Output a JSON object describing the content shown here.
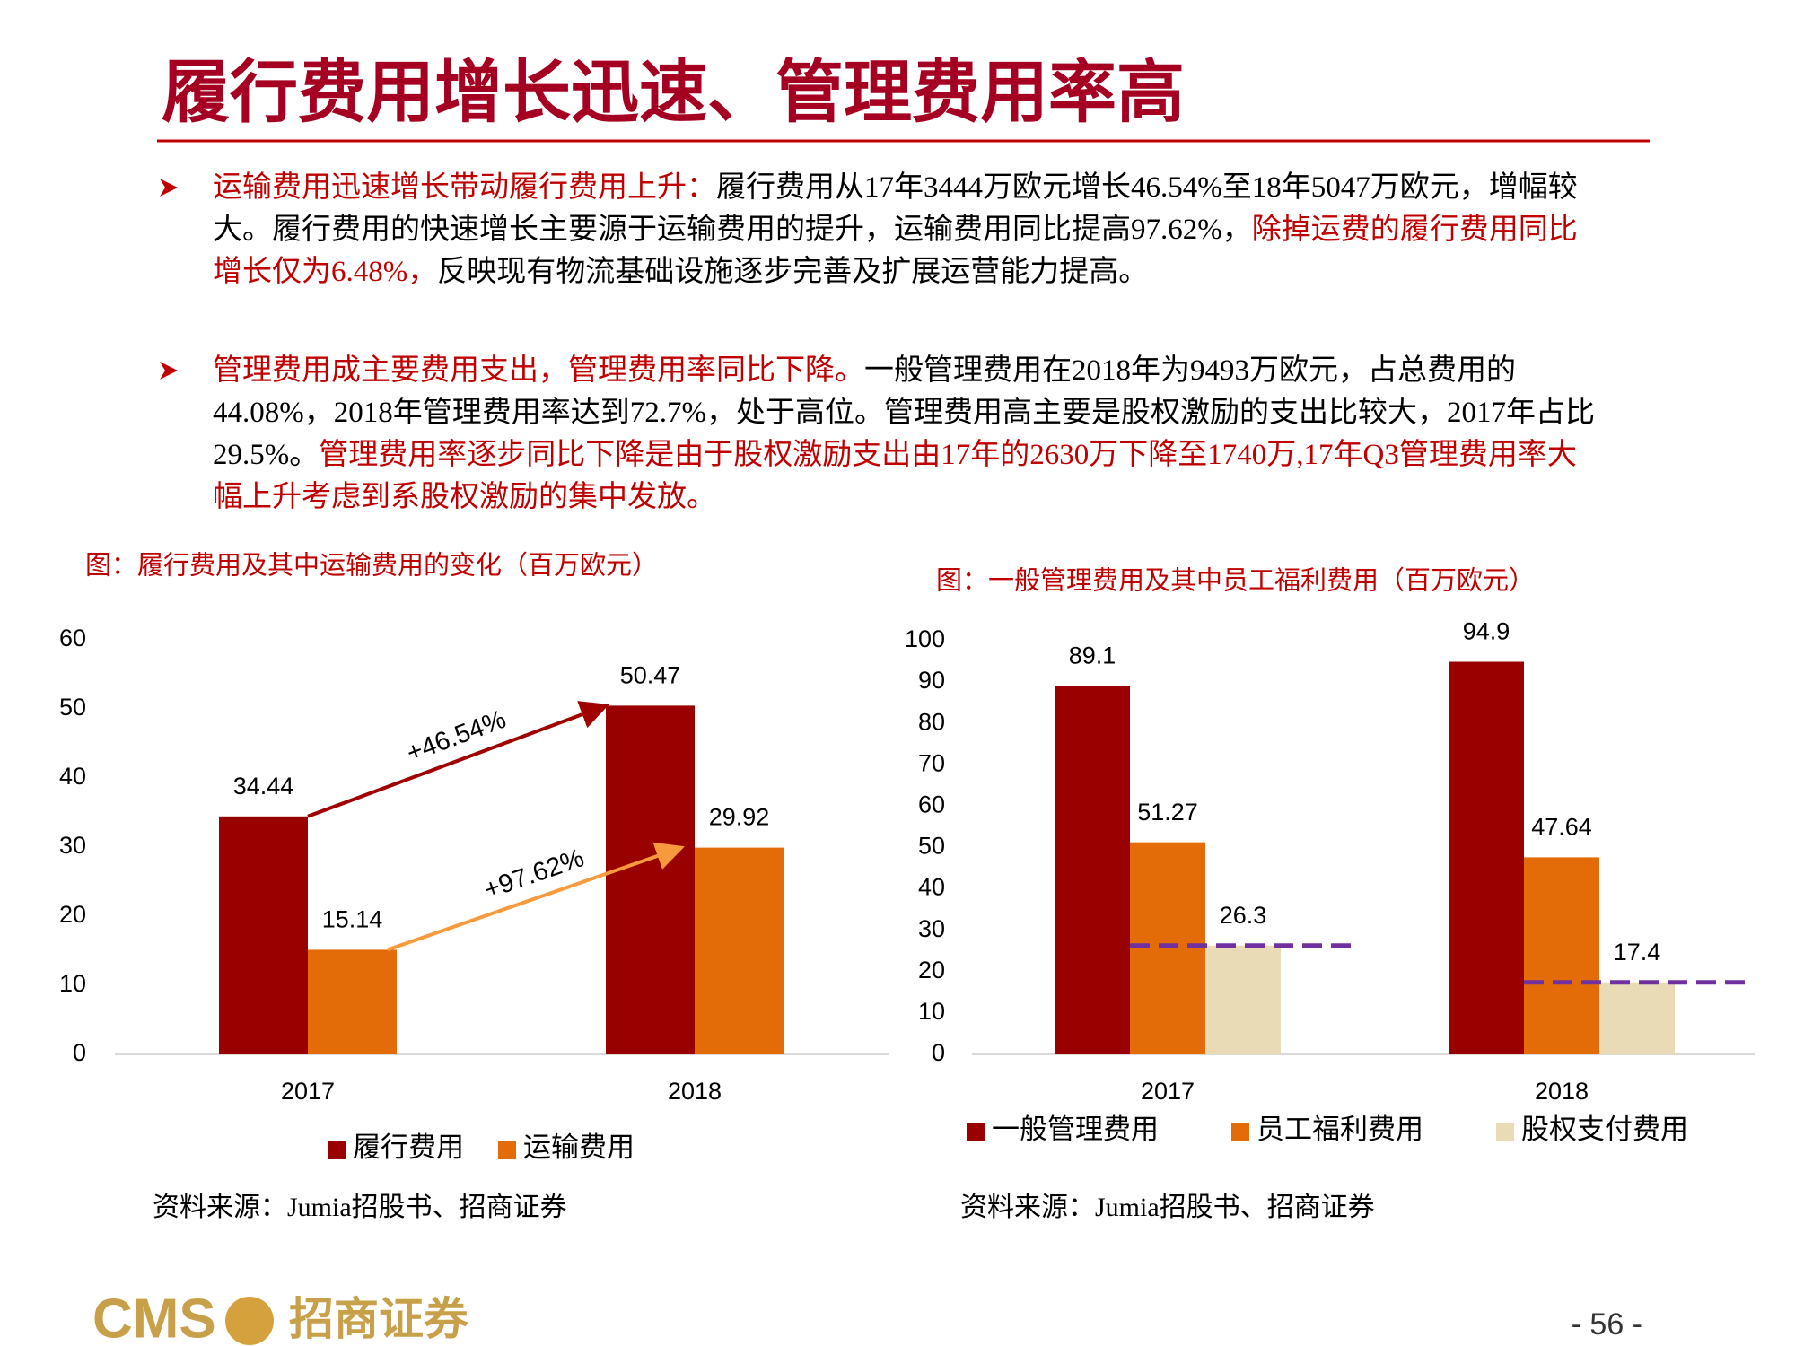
{
  "header": {
    "title": "履行费用增长迅速、管理费用率高"
  },
  "bullets": [
    [
      {
        "text": "运输费用迅速增长带动履行费用上升：",
        "highlight": true
      },
      {
        "text": "履行费用从17年3444万欧元增长46.54%至18年5047万欧元，增幅较大。履行费用的快速增长主要源于运输费用的提升，运输费用同比提高97.62%，",
        "highlight": false
      },
      {
        "text": "除掉运费的履行费用同比增长仅为6.48%，",
        "highlight": true
      },
      {
        "text": "反映现有物流基础设施逐步完善及扩展运营能力提高。",
        "highlight": false
      }
    ],
    [
      {
        "text": "管理费用成主要费用支出，管理费用率同比下降。",
        "highlight": true
      },
      {
        "text": "一般管理费用在2018年为9493万欧元，占总费用的44.08%，2018年管理费用率达到72.7%，处于高位。管理费用高主要是股权激励的支出比较大，2017年占比29.5%。",
        "highlight": false
      },
      {
        "text": "管理费用率逐步同比下降是由于股权激励支出由17年的2630万下降至1740万,17年Q3管理费用率大幅上升考虑到系股权激励的集中发放。",
        "highlight": true
      }
    ]
  ],
  "chart_data": [
    {
      "type": "bar",
      "title": "图：履行费用及其中运输费用的变化（百万欧元）",
      "categories": [
        "2017",
        "2018"
      ],
      "series": [
        {
          "name": "履行费用",
          "color": "#990000",
          "values": [
            34.44,
            50.47
          ]
        },
        {
          "name": "运输费用",
          "color": "#e36c09",
          "values": [
            15.14,
            29.92
          ]
        }
      ],
      "ylim": [
        0,
        60
      ],
      "yticks": [
        0,
        10,
        20,
        30,
        40,
        50,
        60
      ],
      "annotations": [
        {
          "text": "+46.54%",
          "color": "#a00000"
        },
        {
          "text": "+97.62%",
          "color": "#f79a3c"
        }
      ],
      "source": "资料来源：Jumia招股书、招商证券"
    },
    {
      "type": "bar",
      "title": "图：一般管理费用及其中员工福利费用（百万欧元）",
      "categories": [
        "2017",
        "2018"
      ],
      "series": [
        {
          "name": "一般管理费用",
          "color": "#990000",
          "values": [
            89.1,
            94.9
          ]
        },
        {
          "name": "员工福利费用",
          "color": "#e36c09",
          "values": [
            51.27,
            47.64
          ]
        },
        {
          "name": "股权支付费用",
          "color": "#e8dbb5",
          "values": [
            26.3,
            17.4
          ]
        }
      ],
      "ylim": [
        0,
        100
      ],
      "yticks": [
        0,
        10,
        20,
        30,
        40,
        50,
        60,
        70,
        80,
        90,
        100
      ],
      "reference_line_color": "#7030a0",
      "source": "资料来源：Jumia招股书、招商证券"
    }
  ],
  "footer": {
    "logo_code": "CMS",
    "logo_name": "招商证券",
    "page": "- 56 -"
  }
}
